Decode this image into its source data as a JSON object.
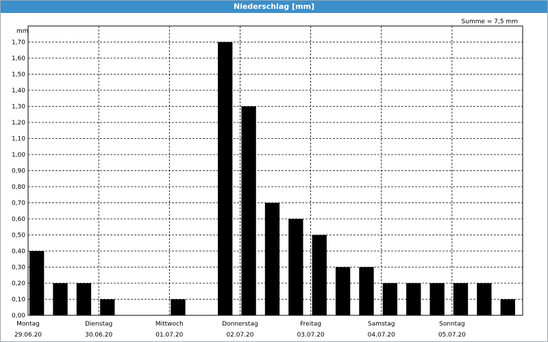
{
  "window": {
    "title": "Niederschlag [mm]"
  },
  "chart_data": {
    "type": "bar",
    "title": "Niederschlag [mm]",
    "ylabel": "mm",
    "annotation": "Summe = 7,5 mm",
    "ylim": [
      0,
      1.8
    ],
    "yticks": [
      "0,00",
      "0,10",
      "0,20",
      "0,30",
      "0,40",
      "0,50",
      "0,60",
      "0,70",
      "0,80",
      "0,90",
      "1,00",
      "1,10",
      "1,20",
      "1,30",
      "1,40",
      "1,50",
      "1,60",
      "1,70"
    ],
    "grid": true,
    "days": [
      {
        "name": "Montag",
        "date": "29.06.20"
      },
      {
        "name": "Dienstag",
        "date": "30.06.20"
      },
      {
        "name": "Mittwoch",
        "date": "01.07.20"
      },
      {
        "name": "Donnerstag",
        "date": "02.07.20"
      },
      {
        "name": "Freitag",
        "date": "03.07.20"
      },
      {
        "name": "Samstag",
        "date": "04.07.20"
      },
      {
        "name": "Sonntag",
        "date": "05.07.20"
      }
    ],
    "bars_per_day": 3,
    "values": [
      0.4,
      0.2,
      0.2,
      0.1,
      0,
      0,
      0.1,
      0,
      1.7,
      1.3,
      0.7,
      0.6,
      0.5,
      0.3,
      0.3,
      0.2,
      0.2,
      0.2,
      0.2,
      0.2,
      0.1
    ],
    "colors": {
      "bar": "#000000",
      "grid": "#000000",
      "title_bg": "#3d8fc9"
    }
  }
}
